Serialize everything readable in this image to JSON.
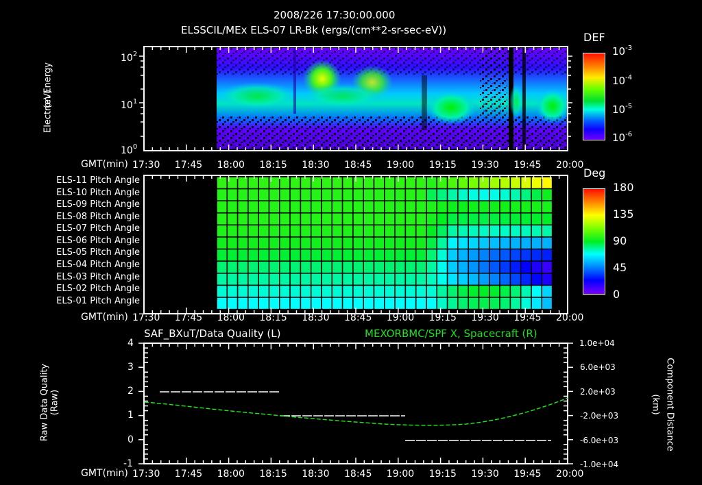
{
  "header": {
    "timestamp": "2008/226 17:30:00.000",
    "subtitle": "ELSSCIL/MEx ELS-07 LR-Bk  (ergs/(cm**2-sr-sec-eV))"
  },
  "panel1": {
    "ylabel_line1": "Electron Energy",
    "ylabel_line2": "(eV)",
    "yticks": [
      "10",
      "10",
      "10"
    ],
    "yticks_exp": [
      "2",
      "1",
      "0"
    ],
    "colorbar_title": "DEF",
    "colorbar_ticks": [
      "10",
      "10",
      "10",
      "10"
    ],
    "colorbar_exps": [
      "-3",
      "-4",
      "-5",
      "-6"
    ]
  },
  "panel2": {
    "rows": [
      "ELS-11 Pitch Angle",
      "ELS-10 Pitch Angle",
      "ELS-09 Pitch Angle",
      "ELS-08 Pitch Angle",
      "ELS-07 Pitch Angle",
      "ELS-06 Pitch Angle",
      "ELS-05 Pitch Angle",
      "ELS-04 Pitch Angle",
      "ELS-03 Pitch Angle",
      "ELS-02 Pitch Angle",
      "ELS-01 Pitch Angle"
    ],
    "colorbar_title": "Deg",
    "colorbar_ticks": [
      "180",
      "135",
      "90",
      "45",
      "0"
    ]
  },
  "panel3": {
    "left_title": "SAF_BXuT/Data Quality (L)",
    "right_title": "MEXORBMC/SPF X, Spacecraft (R)",
    "ylabel_left_line1": "Raw Data Quality",
    "ylabel_left_line2": "(Raw)",
    "ylabel_right_line1": "Component Distance",
    "ylabel_right_line2": "(km)",
    "left_ticks": [
      "4",
      "3",
      "2",
      "1",
      "0",
      "-1"
    ],
    "right_ticks": [
      "1.0e+04",
      "6.0e+03",
      "2.0e+03",
      "-2.0e+03",
      "-6.0e+03",
      "-1.0e+04"
    ]
  },
  "xaxis": {
    "label": "GMT(min)",
    "ticks": [
      "17:30",
      "17:45",
      "18:00",
      "18:15",
      "18:30",
      "18:45",
      "19:00",
      "19:15",
      "19:30",
      "19:45",
      "20:00"
    ]
  },
  "colors": {
    "background": "#000000",
    "axis": "#ffffff",
    "spacecraft_line": "#1fe01f"
  },
  "chart_data": [
    {
      "type": "heatmap",
      "title": "ELSSCIL/MEx ELS-07 LR-Bk (ergs/(cm**2-sr-sec-eV))",
      "xlabel": "GMT(min)",
      "ylabel": "Electron Energy (eV)",
      "x_range": [
        "17:30",
        "20:00"
      ],
      "y_scale": "log",
      "ylim": [
        1,
        150
      ],
      "data_start": "17:58",
      "colorbar": {
        "label": "DEF",
        "scale": "log",
        "range": [
          1e-06,
          0.001
        ]
      },
      "features": [
        {
          "time": "17:58-18:20",
          "energy_eV": "5-20",
          "level": "~2e-5"
        },
        {
          "time": "18:28-18:38",
          "energy_eV": "20-60",
          "level": "~1e-4 (peak)"
        },
        {
          "time": "18:38-18:58",
          "energy_eV": "8-40",
          "level": "~5e-5"
        },
        {
          "time": "19:07-19:17",
          "energy_eV": "4-15",
          "level": "~3e-5"
        },
        {
          "time": "19:40-19:44",
          "energy_eV": "all",
          "level": "data gap"
        },
        {
          "time": "19:50-19:59",
          "energy_eV": "4-15",
          "level": "~3e-5"
        }
      ]
    },
    {
      "type": "heatmap",
      "title": "Pitch Angle",
      "xlabel": "GMT(min)",
      "categories": [
        "ELS-11",
        "ELS-10",
        "ELS-09",
        "ELS-08",
        "ELS-07",
        "ELS-06",
        "ELS-05",
        "ELS-04",
        "ELS-03",
        "ELS-02",
        "ELS-01"
      ],
      "colorbar": {
        "label": "Deg",
        "range": [
          0,
          180
        ]
      },
      "data_range": [
        "17:58",
        "19:56"
      ],
      "cells_note": "17:58-19:10 nearly uniform: ELS-11..ELS-06 ~95-100 deg, ELS-05..ELS-01 decreasing to ~60 deg; 19:10-19:56 pitch angles drop to ~25-40 deg in ELS-09..ELS-04 toward 19:50, ELS-11 rises to ~130 deg at 19:55"
    },
    {
      "type": "line",
      "title": "SAF_BXuT/Data Quality (L) & MEXORBMC/SPF X, Spacecraft (R)",
      "xlabel": "GMT(min)",
      "ylabel": "Raw Data Quality (Raw)",
      "ylabel_right": "Component Distance (km)",
      "ylim": [
        -1,
        4
      ],
      "ylim_right": [
        -10000,
        10000
      ],
      "series": [
        {
          "name": "Data Quality (L)",
          "x": [
            "17:35",
            "18:18",
            "18:18",
            "19:01",
            "19:01",
            "19:56"
          ],
          "values": [
            2,
            2,
            1,
            1,
            0,
            0
          ]
        },
        {
          "name": "SPF X Spacecraft (R)",
          "x": [
            "17:30",
            "17:45",
            "18:00",
            "18:15",
            "18:30",
            "18:45",
            "19:00",
            "19:15",
            "19:30",
            "19:45",
            "20:00"
          ],
          "values": [
            -500,
            -1200,
            -2000,
            -2800,
            -3400,
            -4000,
            -4400,
            -4500,
            -3800,
            -1800,
            1400
          ]
        }
      ]
    }
  ]
}
